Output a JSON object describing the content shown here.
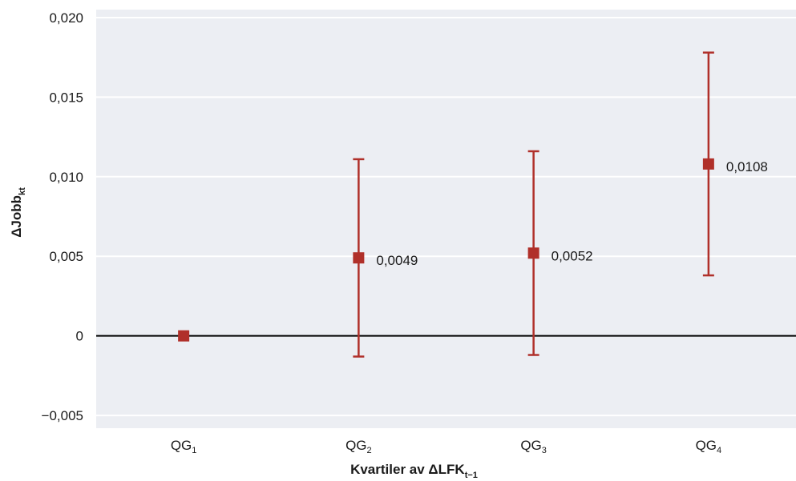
{
  "chart_data": {
    "type": "scatter",
    "categories": [
      "QG",
      "QG",
      "QG",
      "QG"
    ],
    "category_subscripts": [
      "1",
      "2",
      "3",
      "4"
    ],
    "points": [
      {
        "value": 0.0,
        "lower": null,
        "upper": null,
        "label": ""
      },
      {
        "value": 0.0049,
        "lower": -0.0013,
        "upper": 0.0111,
        "label": "0,0049"
      },
      {
        "value": 0.0052,
        "lower": -0.0012,
        "upper": 0.0116,
        "label": "0,0052"
      },
      {
        "value": 0.0108,
        "lower": 0.0038,
        "upper": 0.0178,
        "label": "0,0108"
      }
    ],
    "ylim": [
      -0.0058,
      0.0205
    ],
    "yticks": [
      -0.005,
      0,
      0.005,
      0.01,
      0.015,
      0.02
    ],
    "ytick_labels": [
      "−0,005",
      "0",
      "0,005",
      "0,010",
      "0,015",
      "0,020"
    ],
    "xlabel": "Kvartiler av ΔLFK",
    "xlabel_subscript": "t−1",
    "ylabel": "ΔJobb",
    "ylabel_subscript": "kt",
    "grid": true,
    "zero_line": true,
    "colors": {
      "marker": "#b0302a",
      "errorbar": "#b0302a",
      "background": "#eceef3",
      "grid": "#ffffff",
      "zero_line": "#000000"
    }
  }
}
